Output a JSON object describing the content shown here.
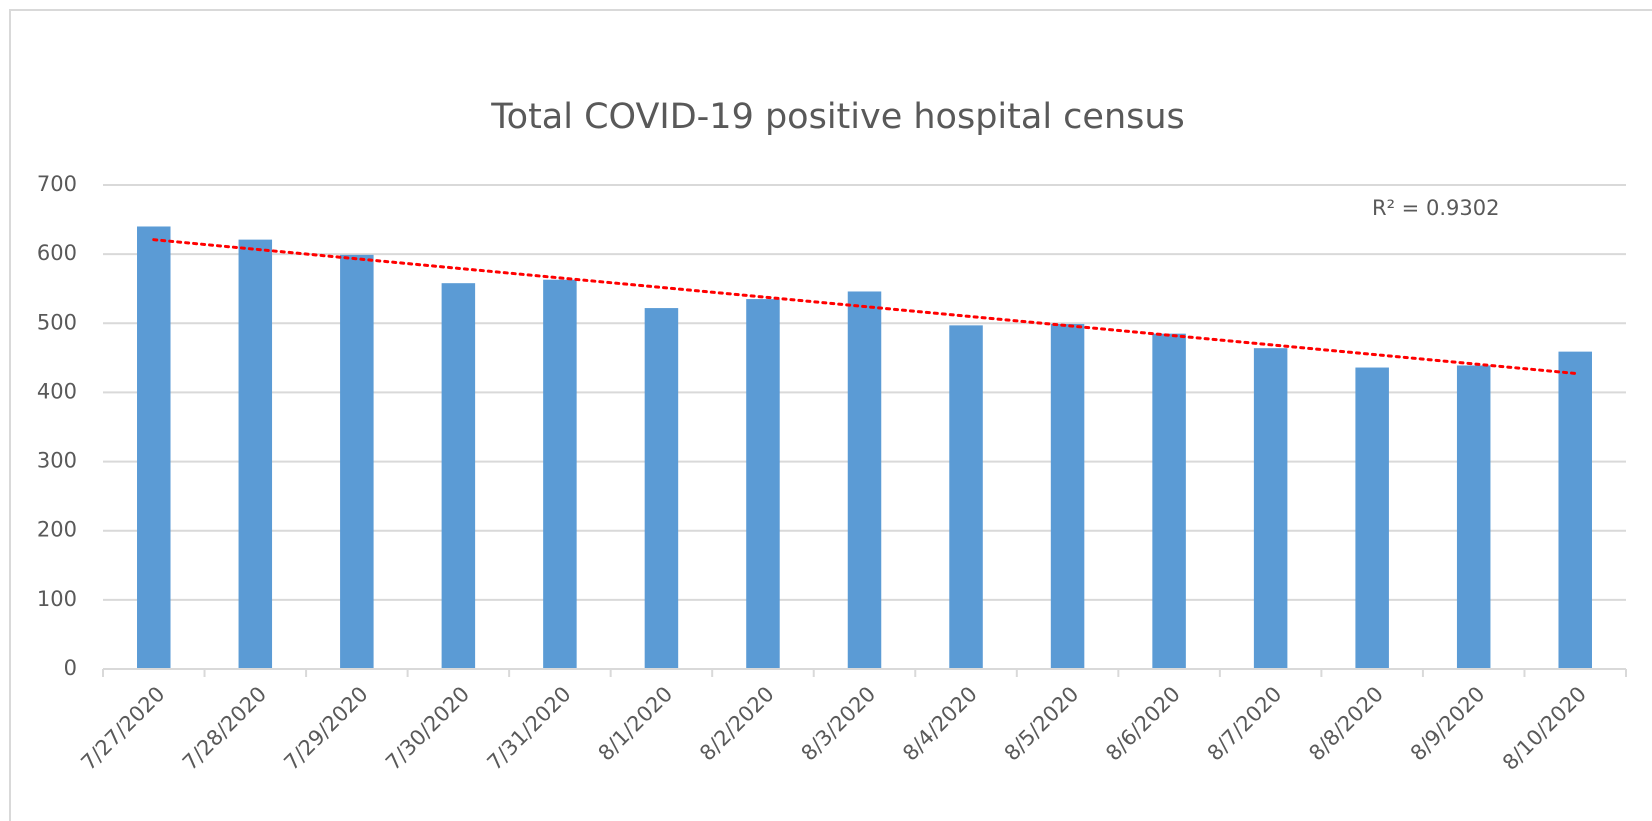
{
  "chart_data": {
    "type": "bar",
    "title": "Total COVID-19 positive hospital census",
    "categories": [
      "7/27/2020",
      "7/28/2020",
      "7/29/2020",
      "7/30/2020",
      "7/31/2020",
      "8/1/2020",
      "8/2/2020",
      "8/3/2020",
      "8/4/2020",
      "8/5/2020",
      "8/6/2020",
      "8/7/2020",
      "8/8/2020",
      "8/9/2020",
      "8/10/2020"
    ],
    "values": [
      640,
      621,
      599,
      558,
      563,
      522,
      535,
      546,
      497,
      499,
      485,
      464,
      436,
      439,
      459
    ],
    "color": "#5b9bd5",
    "ylim": [
      0,
      700
    ],
    "yticks": [
      0,
      100,
      200,
      300,
      400,
      500,
      600,
      700
    ],
    "grid": true,
    "trendline": {
      "type": "linear",
      "color": "#ff0000",
      "label": "R² = 0.9302"
    }
  }
}
